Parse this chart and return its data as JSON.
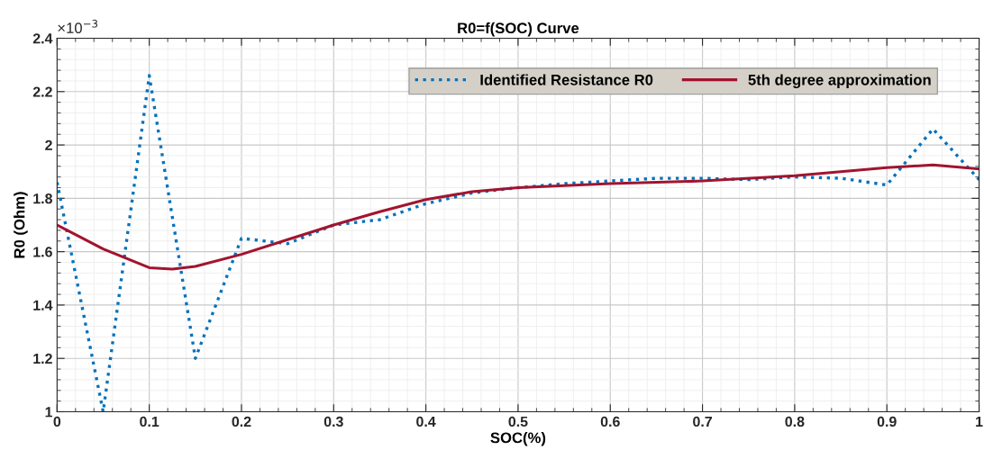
{
  "chart_data": {
    "type": "line",
    "title": "R0=f(SOC) Curve",
    "xlabel": "SOC(%)",
    "ylabel": "R0 (Ohm)",
    "annotations": [
      "×10$^{−3}$"
    ],
    "series": [
      {
        "name": "Identified Resistance R0",
        "color": "#0072bd",
        "line_style": "dotted",
        "x": [
          0,
          0.05,
          0.1,
          0.15,
          0.2,
          0.25,
          0.3,
          0.35,
          0.4,
          0.45,
          0.5,
          0.55,
          0.6,
          0.65,
          0.7,
          0.75,
          0.8,
          0.85,
          0.9,
          0.95,
          1
        ],
        "values": [
          1.86,
          1.0,
          2.26,
          1.2,
          1.65,
          1.63,
          1.7,
          1.72,
          1.78,
          1.82,
          1.84,
          1.855,
          1.865,
          1.875,
          1.875,
          1.87,
          1.88,
          1.875,
          1.85,
          2.06,
          1.87
        ]
      },
      {
        "name": "5th degree approximation",
        "color": "#a2142f",
        "line_style": "solid",
        "x": [
          0,
          0.05,
          0.1,
          0.125,
          0.15,
          0.2,
          0.25,
          0.3,
          0.35,
          0.4,
          0.45,
          0.5,
          0.6,
          0.7,
          0.8,
          0.9,
          0.95,
          1
        ],
        "values": [
          1.7,
          1.61,
          1.54,
          1.535,
          1.545,
          1.59,
          1.645,
          1.7,
          1.75,
          1.795,
          1.825,
          1.84,
          1.855,
          1.865,
          1.885,
          1.915,
          1.925,
          1.91
        ]
      }
    ],
    "xlim": [
      0,
      1
    ],
    "xticks": [
      0,
      0.1,
      0.2,
      0.3,
      0.4,
      0.5,
      0.6,
      0.7,
      0.8,
      0.9,
      1
    ],
    "ylim": [
      1,
      2.4
    ],
    "yticks": [
      1,
      1.2,
      1.4,
      1.6,
      1.8,
      2,
      2.2,
      2.4
    ],
    "grid": true,
    "legend": "top right",
    "marker": "none"
  }
}
